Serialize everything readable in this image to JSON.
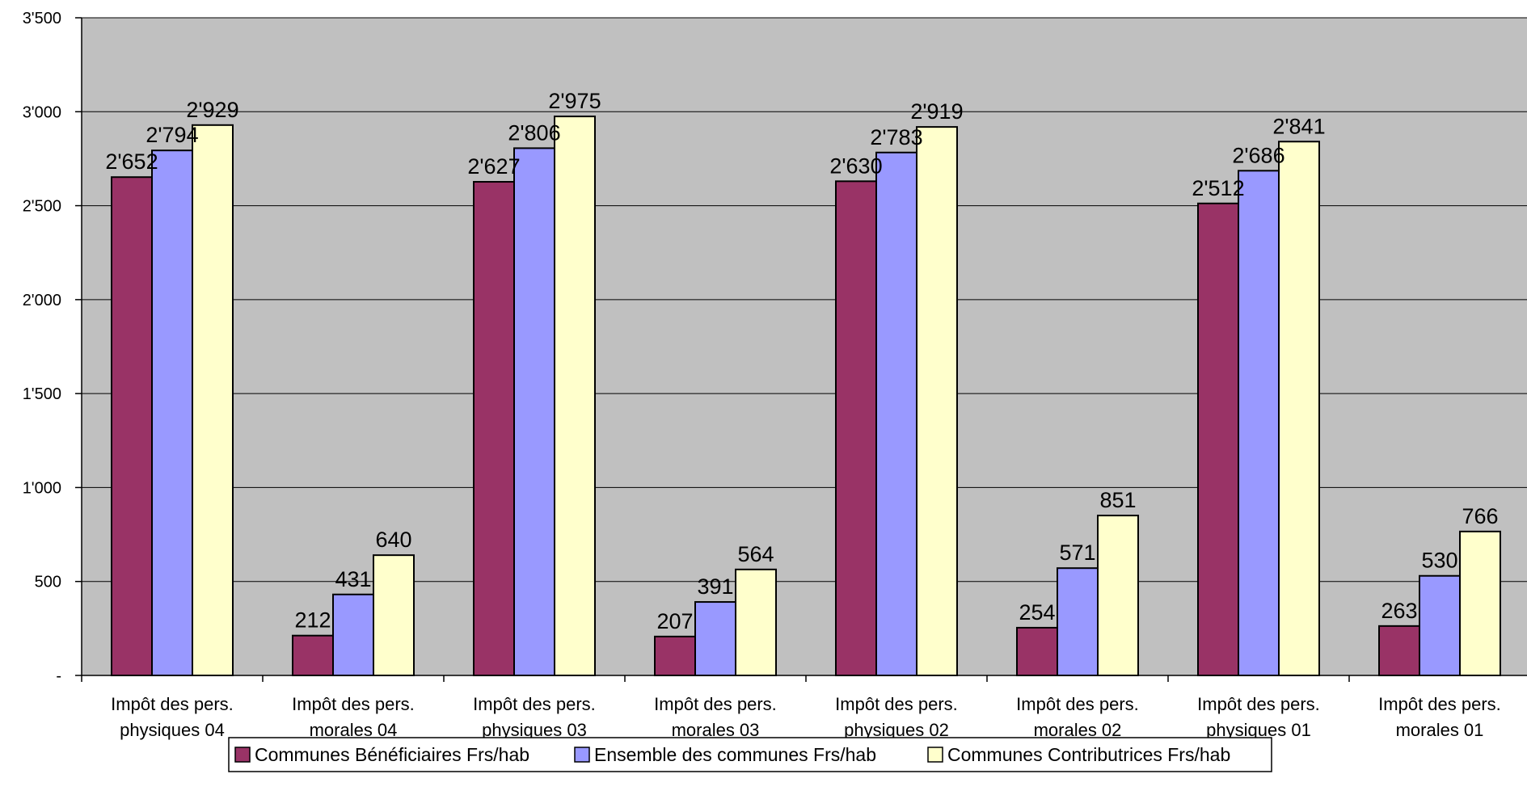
{
  "chart_data": {
    "type": "bar",
    "title": "",
    "xlabel": "",
    "ylabel": "",
    "ylim": [
      0,
      3500
    ],
    "yticks": [
      0,
      500,
      1000,
      1500,
      2000,
      2500,
      3000,
      3500
    ],
    "ytick_labels": [
      "-",
      "500",
      "1'000",
      "1'500",
      "2'000",
      "2'500",
      "3'000",
      "3'500"
    ],
    "grid": true,
    "legend_position": "bottom",
    "categories": [
      [
        "Impôt des pers.",
        "physiques 04"
      ],
      [
        "Impôt des pers.",
        "morales 04"
      ],
      [
        "Impôt des pers.",
        "physiques 03"
      ],
      [
        "Impôt des pers.",
        "morales 03"
      ],
      [
        "Impôt des pers.",
        "physiques 02"
      ],
      [
        "Impôt des pers.",
        "morales 02"
      ],
      [
        "Impôt des pers.",
        "physiques 01"
      ],
      [
        "Impôt des pers.",
        "morales 01"
      ]
    ],
    "series": [
      {
        "name": "Communes Bénéficiaires Frs/hab",
        "color": "#993366",
        "values": [
          2652,
          212,
          2627,
          207,
          2630,
          254,
          2512,
          263
        ],
        "labels": [
          "2'652",
          "212",
          "2'627",
          "207",
          "2'630",
          "254",
          "2'512",
          "263"
        ]
      },
      {
        "name": "Ensemble des communes Frs/hab",
        "color": "#9999ff",
        "values": [
          2794,
          431,
          2806,
          391,
          2783,
          571,
          2686,
          530
        ],
        "labels": [
          "2'794",
          "431",
          "2'806",
          "391",
          "2'783",
          "571",
          "2'686",
          "530"
        ]
      },
      {
        "name": "Communes Contributrices Frs/hab",
        "color": "#ffffcc",
        "values": [
          2929,
          640,
          2975,
          564,
          2919,
          851,
          2841,
          766
        ],
        "labels": [
          "2'929",
          "640",
          "2'975",
          "564",
          "2'919",
          "851",
          "2'841",
          "766"
        ]
      }
    ],
    "colors": {
      "plot_background": "#c0c0c0",
      "gridline": "#000000"
    }
  }
}
